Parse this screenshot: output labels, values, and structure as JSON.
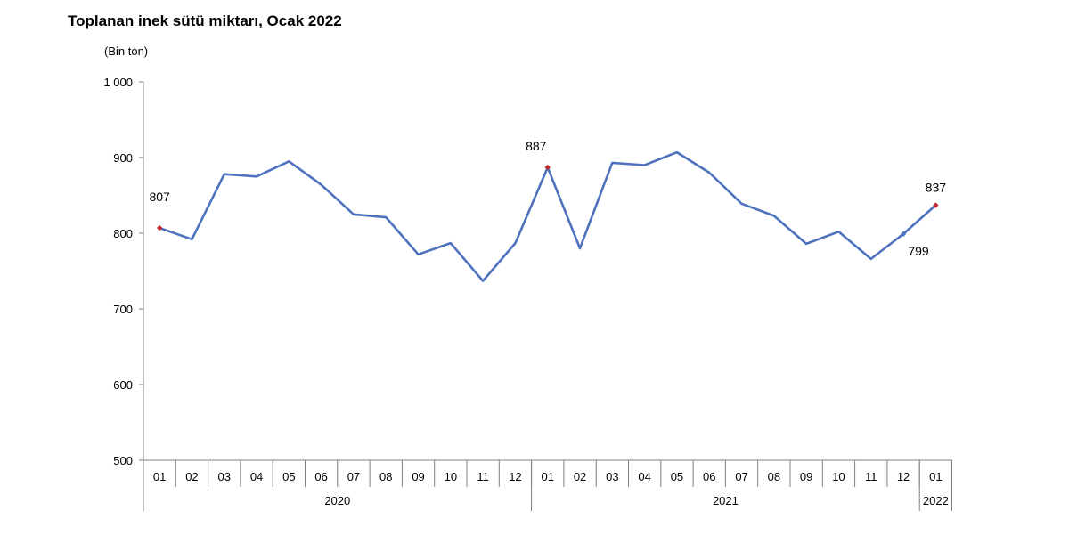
{
  "chart_data": {
    "type": "line",
    "title": "Toplanan inek sütü miktarı, Ocak 2022",
    "ylabel": "(Bin ton)",
    "ylim": [
      500,
      1000
    ],
    "yticks": [
      "500",
      "600",
      "700",
      "800",
      "900",
      "1 000"
    ],
    "ytick_values": [
      500,
      600,
      700,
      800,
      900,
      1000
    ],
    "categories": [
      "01",
      "02",
      "03",
      "04",
      "05",
      "06",
      "07",
      "08",
      "09",
      "10",
      "11",
      "12",
      "01",
      "02",
      "03",
      "04",
      "05",
      "06",
      "07",
      "08",
      "09",
      "10",
      "11",
      "12",
      "01"
    ],
    "groups": [
      {
        "label": "2020",
        "count": 12
      },
      {
        "label": "2021",
        "count": 12
      },
      {
        "label": "2022",
        "count": 1
      }
    ],
    "series": [
      {
        "values": [
          807,
          792,
          878,
          875,
          895,
          864,
          825,
          821,
          772,
          787,
          737,
          787,
          887,
          780,
          893,
          890,
          907,
          880,
          839,
          823,
          786,
          802,
          766,
          799,
          837
        ],
        "color": "#4f72be"
      }
    ],
    "annotations": [
      {
        "index": 0,
        "label": "807",
        "marker_color": "#c0272d"
      },
      {
        "index": 12,
        "label": "887",
        "marker_color": "#c0272d"
      },
      {
        "index": 23,
        "label": "799",
        "marker_color": "#4f72be"
      },
      {
        "index": 24,
        "label": "837",
        "marker_color": "#c0272d"
      }
    ],
    "grid": false
  }
}
